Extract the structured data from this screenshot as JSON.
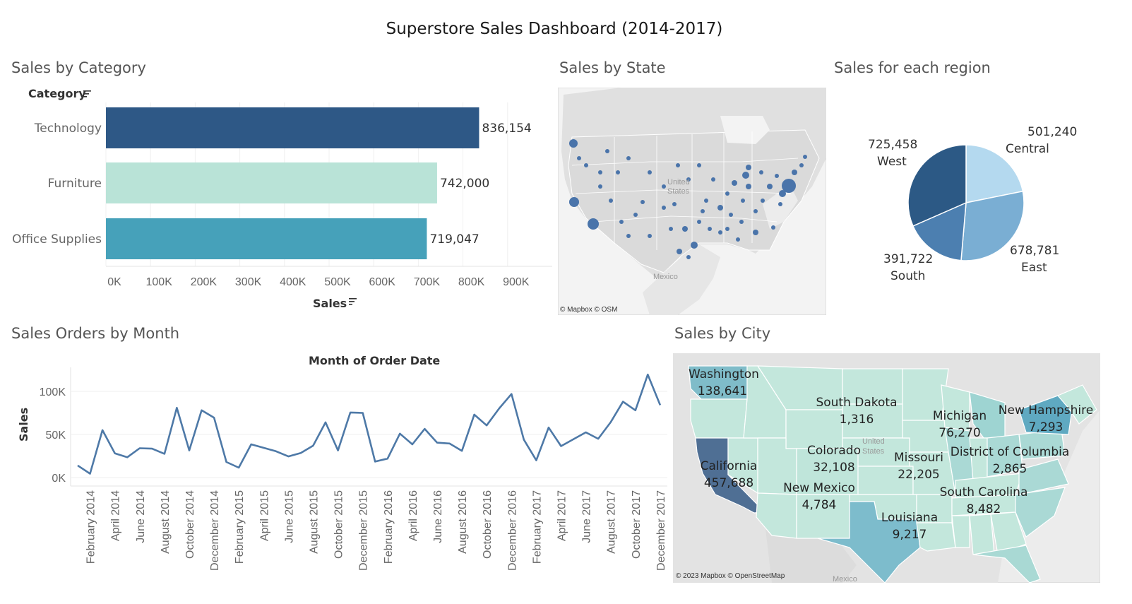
{
  "dashboard": {
    "title": "Superstore Sales Dashboard (2014-2017)"
  },
  "category_sheet": {
    "title": "Sales by Category",
    "row_header": "Category",
    "axis_title": "Sales"
  },
  "state_sheet": {
    "title": "Sales by State",
    "credit": "© Mapbox © OSM",
    "land_labels": [
      "United",
      "States",
      "Mexico"
    ]
  },
  "region_sheet": {
    "title": "Sales for each region"
  },
  "month_sheet": {
    "title": "Sales Orders by Month",
    "column_header": "Month of Order Date",
    "axis_title": "Sales"
  },
  "city_sheet": {
    "title": "Sales by City",
    "credit": "© 2023 Mapbox © OpenStreetMap",
    "land_labels": [
      "United",
      "States",
      "Mexico"
    ]
  },
  "chart_data": [
    {
      "type": "bar",
      "orientation": "horizontal",
      "title": "Sales by Category",
      "categories": [
        "Technology",
        "Furniture",
        "Office Supplies"
      ],
      "values": [
        836154,
        742000,
        719047
      ],
      "value_labels": [
        "836,154",
        "742,000",
        "719,047"
      ],
      "colors": [
        "#2e5886",
        "#b9e3d7",
        "#46a1ba"
      ],
      "xlabel": "Sales",
      "ylabel": "Category",
      "xlim": [
        0,
        1000000
      ],
      "x_ticks": [
        "0K",
        "100K",
        "200K",
        "300K",
        "400K",
        "500K",
        "600K",
        "700K",
        "800K",
        "900K"
      ],
      "grid": true
    },
    {
      "type": "pie",
      "title": "Sales for each region",
      "labels": [
        "Central",
        "East",
        "South",
        "West"
      ],
      "values": [
        501240,
        678781,
        391722,
        725458
      ],
      "value_labels": [
        "501,240",
        "678,781",
        "391,722",
        "725,458"
      ],
      "colors": [
        "#b4d9ef",
        "#7aaed3",
        "#4c7fb0",
        "#2c5985"
      ]
    },
    {
      "type": "line",
      "title": "Sales Orders by Month",
      "xlabel": "Month of Order Date",
      "ylabel": "Sales",
      "ylim": [
        -5000,
        125000
      ],
      "y_ticks": [
        "0K",
        "50K",
        "100K"
      ],
      "x_tick_labels": [
        "February 2014",
        "April 2014",
        "June 2014",
        "August 2014",
        "October 2014",
        "December 2014",
        "February 2015",
        "April 2015",
        "June 2015",
        "August 2015",
        "October 2015",
        "December 2015",
        "February 2016",
        "April 2016",
        "June 2016",
        "August 2016",
        "October 2016",
        "December 2016",
        "February 2017",
        "April 2017",
        "June 2017",
        "August 2017",
        "October 2017",
        "December 2017"
      ],
      "x": [
        "2014-01",
        "2014-02",
        "2014-03",
        "2014-04",
        "2014-05",
        "2014-06",
        "2014-07",
        "2014-08",
        "2014-09",
        "2014-10",
        "2014-11",
        "2014-12",
        "2015-01",
        "2015-02",
        "2015-03",
        "2015-04",
        "2015-05",
        "2015-06",
        "2015-07",
        "2015-08",
        "2015-09",
        "2015-10",
        "2015-11",
        "2015-12",
        "2016-01",
        "2016-02",
        "2016-03",
        "2016-04",
        "2016-05",
        "2016-06",
        "2016-07",
        "2016-08",
        "2016-09",
        "2016-10",
        "2016-11",
        "2016-12",
        "2017-01",
        "2017-02",
        "2017-03",
        "2017-04",
        "2017-05",
        "2017-06",
        "2017-07",
        "2017-08",
        "2017-09",
        "2017-10",
        "2017-11",
        "2017-12"
      ],
      "series": [
        {
          "values": [
            14000,
            4500,
            55000,
            28000,
            23500,
            34000,
            33500,
            27500,
            81000,
            31500,
            78000,
            69500,
            18000,
            11500,
            38500,
            34500,
            30500,
            24500,
            28500,
            37000,
            64000,
            31500,
            75500,
            75000,
            18500,
            22000,
            51000,
            38500,
            56500,
            40500,
            39500,
            31000,
            73000,
            60500,
            80000,
            97000,
            44000,
            20000,
            58000,
            36500,
            44500,
            52500,
            45000,
            64000,
            88000,
            78000,
            119500,
            84000
          ],
          "color": "#4e79a7"
        }
      ],
      "grid": true
    },
    {
      "type": "map",
      "title": "Sales by City",
      "regions": [
        {
          "name": "Washington",
          "value": "138,641"
        },
        {
          "name": "California",
          "value": "457,688"
        },
        {
          "name": "South Dakota",
          "value": "1,316"
        },
        {
          "name": "Michigan",
          "value": "76,270"
        },
        {
          "name": "New Hampshire",
          "value": "7,293"
        },
        {
          "name": "Colorado",
          "value": "32,108"
        },
        {
          "name": "District of Columbia",
          "value": "2,865"
        },
        {
          "name": "Missouri",
          "value": "22,205"
        },
        {
          "name": "New Mexico",
          "value": "4,784"
        },
        {
          "name": "South Carolina",
          "value": "8,482"
        },
        {
          "name": "Louisiana",
          "value": "9,217"
        }
      ]
    }
  ]
}
